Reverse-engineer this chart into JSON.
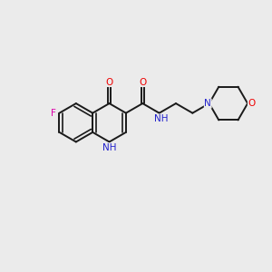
{
  "bg_color": "#ebebeb",
  "bond_color": "#1a1a1a",
  "atom_colors": {
    "F": "#dd00aa",
    "O": "#ee0000",
    "N": "#2222cc",
    "C": "#1a1a1a"
  },
  "figsize": [
    3.0,
    3.0
  ],
  "dpi": 100,
  "bond_lw": 1.4,
  "inner_lw": 1.2,
  "font_size": 7.5
}
